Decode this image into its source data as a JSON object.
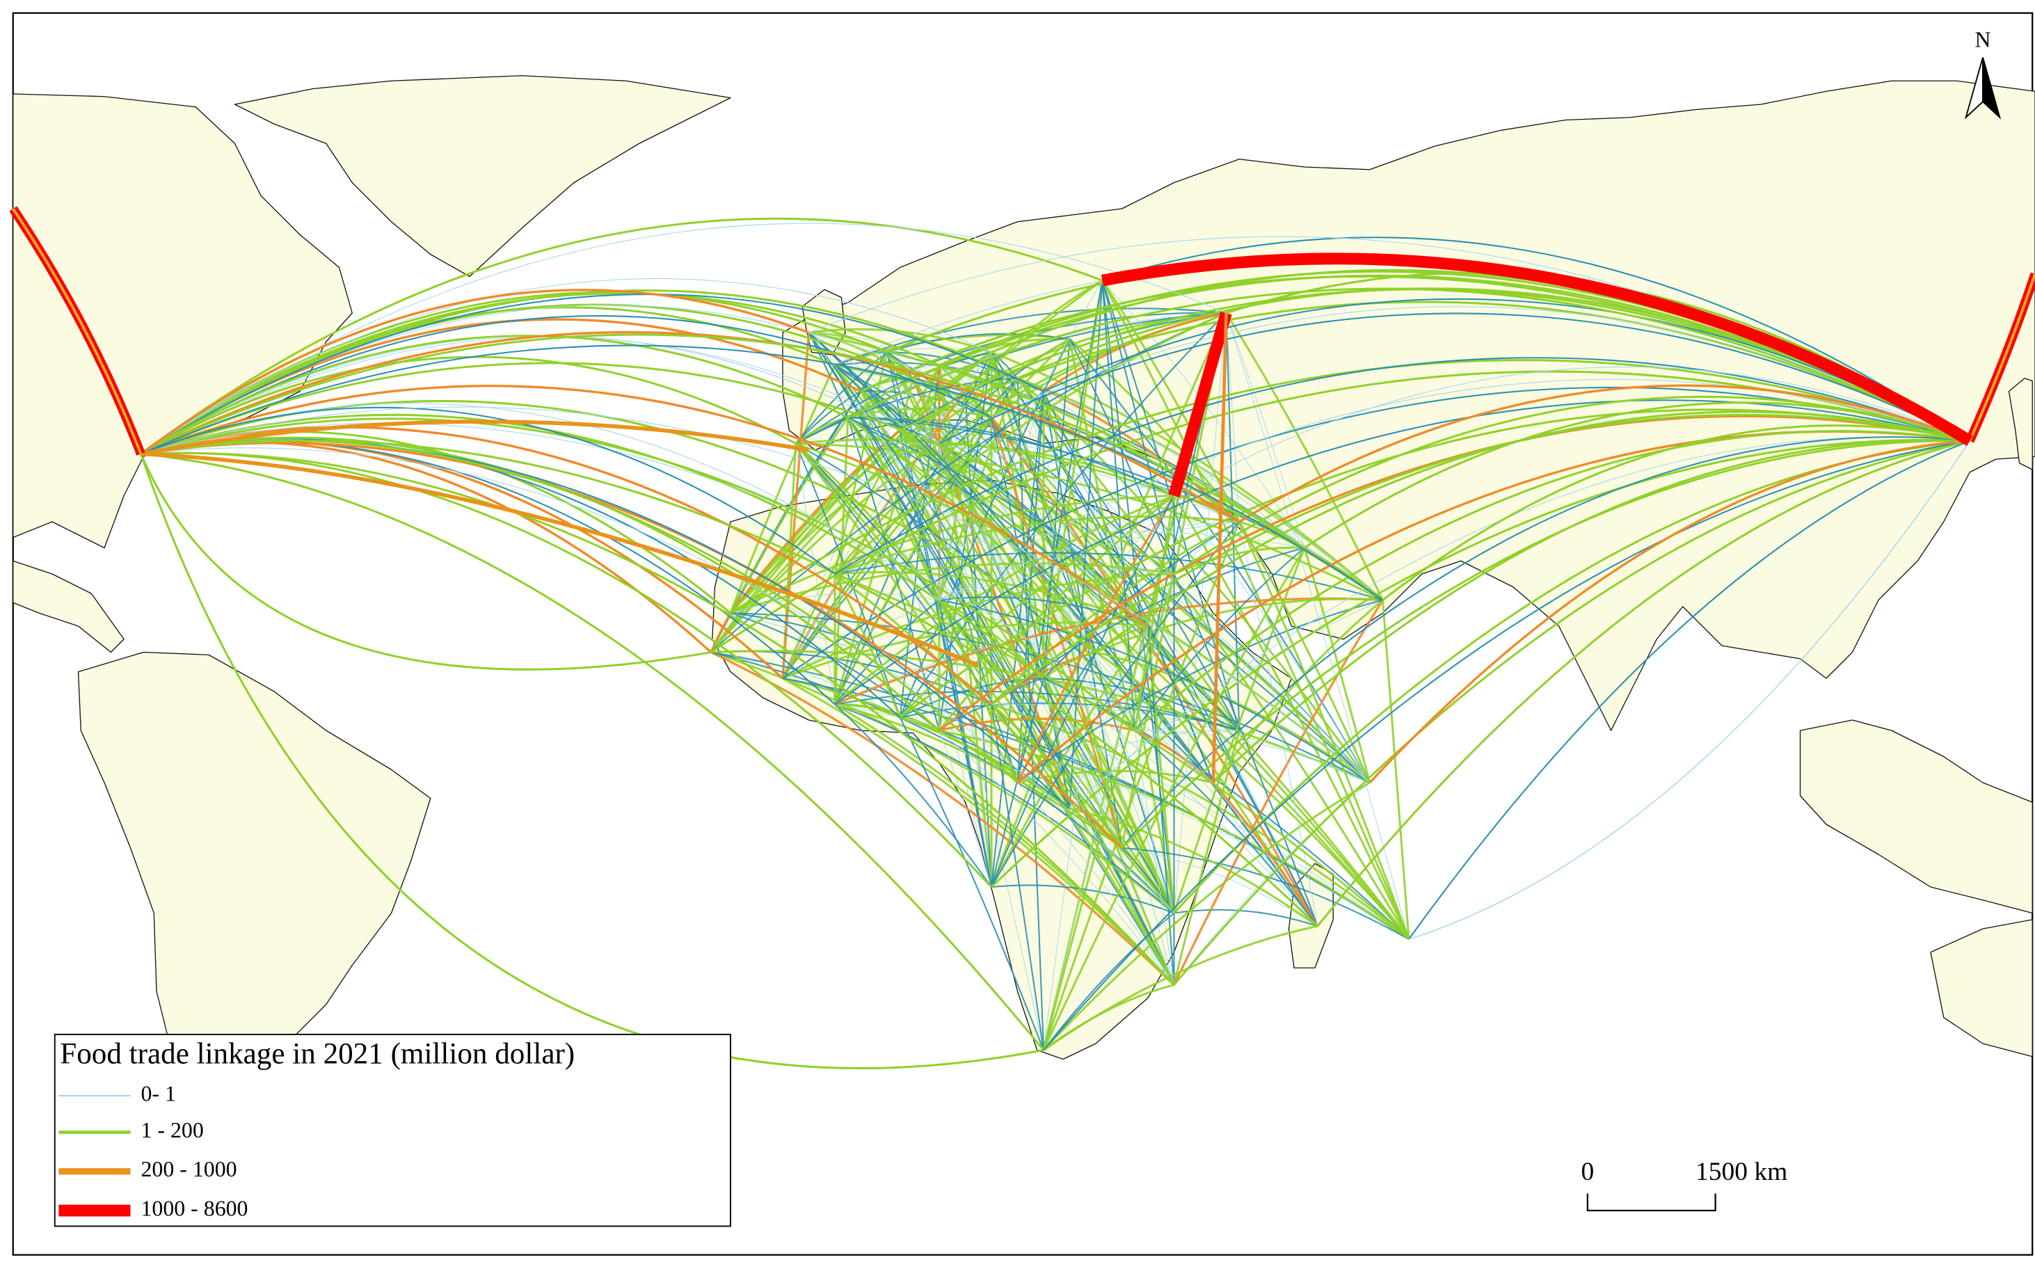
{
  "north_label": "N",
  "legend": {
    "title": "Food trade linkage  in 2021 (million dollar)",
    "items": [
      {
        "label": "0- 1"
      },
      {
        "label": "1 - 200"
      },
      {
        "label": "200 - 1000"
      },
      {
        "label": "1000 - 8600"
      }
    ]
  },
  "scale_bar": {
    "start": "0",
    "end": "1500 km"
  }
}
